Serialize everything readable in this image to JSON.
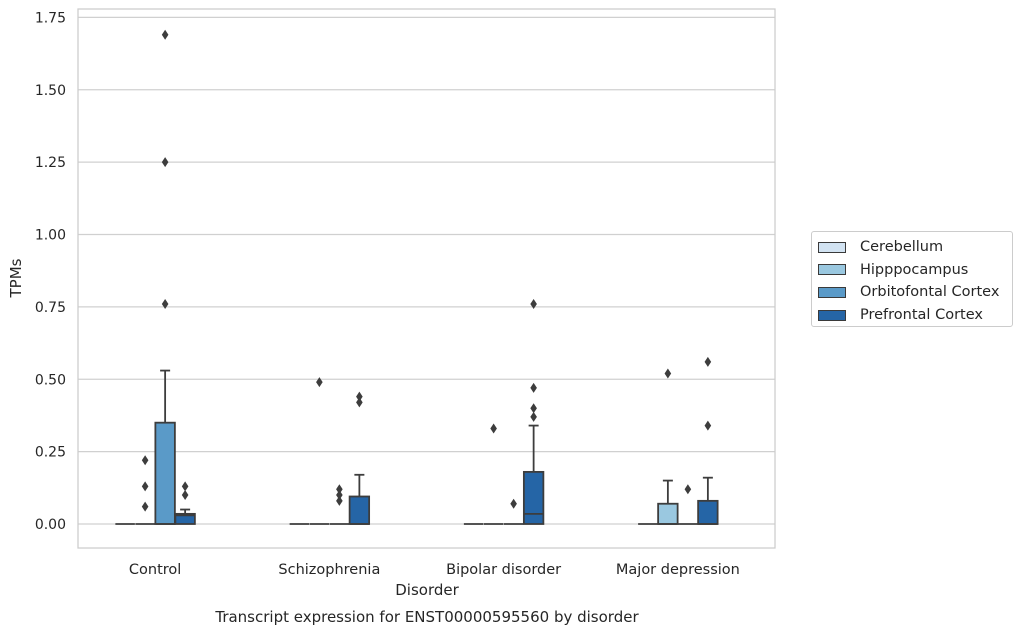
{
  "chart_data": {
    "type": "box",
    "xlabel": "Disorder",
    "ylabel": "TPMs",
    "caption": "Transcript expression for ENST00000595560 by disorder",
    "categories": [
      "Control",
      "Schizophrenia",
      "Bipolar disorder",
      "Major depression"
    ],
    "ylim": [
      -0.08,
      1.77
    ],
    "yticks": [
      "0.00",
      "0.25",
      "0.50",
      "0.75",
      "1.00",
      "1.25",
      "1.50",
      "1.75"
    ],
    "ytick_values": [
      0,
      0.25,
      0.5,
      0.75,
      1.0,
      1.25,
      1.5,
      1.75
    ],
    "grid": true,
    "legend_position": "right",
    "series": [
      {
        "name": "Cerebellum",
        "color": "#d2e3f2",
        "boxes": [
          {
            "q1": 0,
            "median": 0,
            "q3": 0,
            "whislo": 0,
            "whishi": 0,
            "fliers": []
          },
          {
            "q1": 0,
            "median": 0,
            "q3": 0,
            "whislo": 0,
            "whishi": 0,
            "fliers": []
          },
          {
            "q1": 0,
            "median": 0,
            "q3": 0,
            "whislo": 0,
            "whishi": 0,
            "fliers": []
          },
          {
            "q1": 0,
            "median": 0,
            "q3": 0,
            "whislo": 0,
            "whishi": 0,
            "fliers": []
          }
        ]
      },
      {
        "name": "Hipppocampus",
        "color": "#9ac8e0",
        "boxes": [
          {
            "q1": 0,
            "median": 0,
            "q3": 0,
            "whislo": 0,
            "whishi": 0,
            "fliers": [
              0.06,
              0.13,
              0.22
            ]
          },
          {
            "q1": 0,
            "median": 0,
            "q3": 0,
            "whislo": 0,
            "whishi": 0,
            "fliers": [
              0.49
            ]
          },
          {
            "q1": 0,
            "median": 0,
            "q3": 0,
            "whislo": 0,
            "whishi": 0,
            "fliers": [
              0.33
            ]
          },
          {
            "q1": 0,
            "median": 0,
            "q3": 0.07,
            "whislo": 0,
            "whishi": 0.15,
            "fliers": [
              0.52
            ]
          }
        ]
      },
      {
        "name": "Orbitofontal Cortex",
        "color": "#5a9ac8",
        "boxes": [
          {
            "q1": 0,
            "median": 0,
            "q3": 0.35,
            "whislo": 0,
            "whishi": 0.53,
            "fliers": [
              0.76,
              1.25,
              1.69
            ]
          },
          {
            "q1": 0,
            "median": 0,
            "q3": 0,
            "whislo": 0,
            "whishi": 0,
            "fliers": [
              0.08,
              0.1,
              0.12
            ]
          },
          {
            "q1": 0,
            "median": 0,
            "q3": 0,
            "whislo": 0,
            "whishi": 0,
            "fliers": [
              0.07
            ]
          },
          {
            "q1": 0,
            "median": 0,
            "q3": 0,
            "whislo": 0,
            "whishi": 0,
            "fliers": [
              0.12
            ]
          }
        ]
      },
      {
        "name": "Prefrontal Cortex",
        "color": "#2565a6",
        "boxes": [
          {
            "q1": 0,
            "median": 0.03,
            "q3": 0.035,
            "whislo": 0,
            "whishi": 0.05,
            "fliers": [
              0.1,
              0.13
            ]
          },
          {
            "q1": 0,
            "median": 0,
            "q3": 0.095,
            "whislo": 0,
            "whishi": 0.17,
            "fliers": [
              0.42,
              0.44
            ]
          },
          {
            "q1": 0,
            "median": 0.035,
            "q3": 0.18,
            "whislo": 0,
            "whishi": 0.34,
            "fliers": [
              0.37,
              0.4,
              0.47,
              0.76
            ]
          },
          {
            "q1": 0,
            "median": 0,
            "q3": 0.08,
            "whislo": 0,
            "whishi": 0.16,
            "fliers": [
              0.34,
              0.56
            ]
          }
        ]
      }
    ]
  }
}
